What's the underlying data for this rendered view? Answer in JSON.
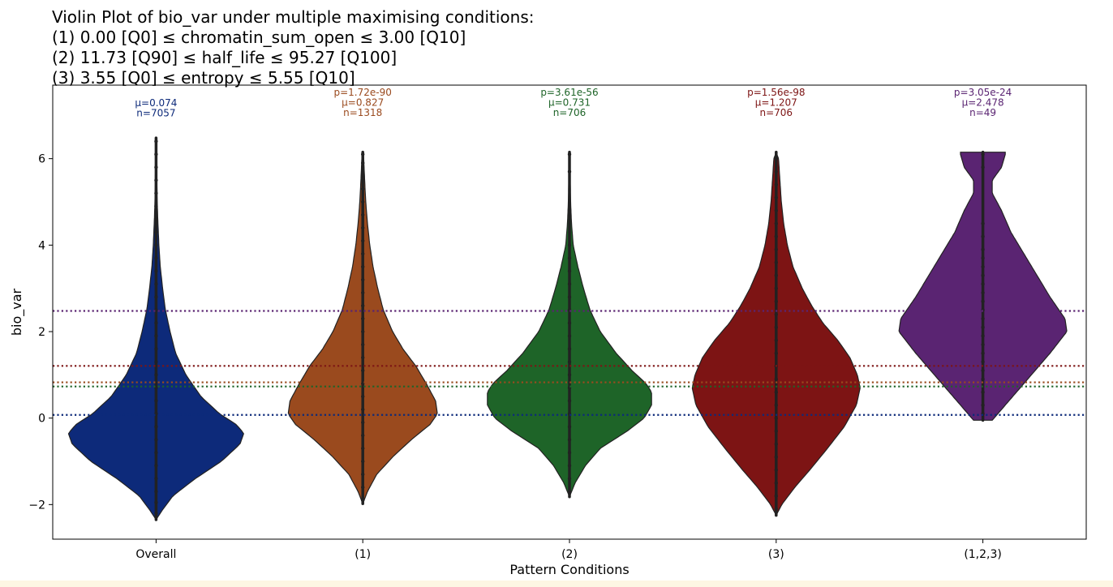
{
  "chart_data": {
    "type": "violin",
    "title_lines": [
      "Violin Plot of bio_var under multiple maximising conditions:",
      "(1) 0.00 [Q0] ≤ chromatin_sum_open ≤ 3.00 [Q10]",
      "(2) 11.73 [Q90] ≤ half_life ≤ 95.27 [Q100]",
      "(3) 3.55 [Q0] ≤ entropy ≤ 5.55 [Q10]"
    ],
    "xlabel": "Pattern Conditions",
    "ylabel": "bio_var",
    "ylim": [
      -2.8,
      7.7
    ],
    "yticks": [
      -2,
      0,
      2,
      4,
      6
    ],
    "ytick_labels": [
      "−2",
      "0",
      "2",
      "4",
      "6"
    ],
    "categories": [
      "Overall",
      "(1)",
      "(2)",
      "(3)",
      "(1,2,3)"
    ],
    "series": [
      {
        "name": "Overall",
        "color": "#0d2a7a",
        "mean": 0.074,
        "p_label": "",
        "mu_label": "μ=0.074",
        "n_label": "n=7057",
        "min": -2.35,
        "max": 6.48,
        "profile": [
          [
            -2.35,
            0.0
          ],
          [
            -2.15,
            0.06
          ],
          [
            -1.8,
            0.18
          ],
          [
            -1.4,
            0.42
          ],
          [
            -1.0,
            0.7
          ],
          [
            -0.6,
            0.9
          ],
          [
            -0.35,
            0.94
          ],
          [
            -0.15,
            0.86
          ],
          [
            0.1,
            0.68
          ],
          [
            0.5,
            0.48
          ],
          [
            1.0,
            0.32
          ],
          [
            1.5,
            0.21
          ],
          [
            2.0,
            0.15
          ],
          [
            2.5,
            0.1
          ],
          [
            3.0,
            0.07
          ],
          [
            3.5,
            0.045
          ],
          [
            4.0,
            0.03
          ],
          [
            4.5,
            0.02
          ],
          [
            5.0,
            0.012
          ],
          [
            5.5,
            0.008
          ],
          [
            6.0,
            0.005
          ],
          [
            6.48,
            0.0
          ]
        ],
        "points": [
          -2.2,
          -1.95,
          -1.7,
          -1.4,
          -1.1,
          -0.8,
          -0.5,
          -0.2,
          0.1,
          0.4,
          0.7,
          1.0,
          1.3,
          1.6,
          1.9,
          2.2,
          2.5,
          2.8,
          3.1,
          3.4,
          3.7,
          4.0,
          4.3,
          4.6,
          4.9,
          5.2,
          5.5,
          5.8,
          6.1,
          6.4
        ]
      },
      {
        "name": "(1)",
        "color": "#9a4a1e",
        "mean": 0.827,
        "p_label": "p=1.72e-90",
        "mu_label": "μ=0.827",
        "n_label": "n=1318",
        "min": -1.98,
        "max": 6.15,
        "profile": [
          [
            -1.98,
            0.0
          ],
          [
            -1.7,
            0.05
          ],
          [
            -1.3,
            0.15
          ],
          [
            -0.9,
            0.32
          ],
          [
            -0.5,
            0.52
          ],
          [
            -0.15,
            0.72
          ],
          [
            0.1,
            0.8
          ],
          [
            0.4,
            0.78
          ],
          [
            0.8,
            0.68
          ],
          [
            1.2,
            0.57
          ],
          [
            1.6,
            0.43
          ],
          [
            2.0,
            0.32
          ],
          [
            2.5,
            0.22
          ],
          [
            3.0,
            0.16
          ],
          [
            3.5,
            0.11
          ],
          [
            4.0,
            0.075
          ],
          [
            4.5,
            0.05
          ],
          [
            5.0,
            0.032
          ],
          [
            5.5,
            0.02
          ],
          [
            6.0,
            0.01
          ],
          [
            6.15,
            0.0
          ]
        ],
        "points": [
          -1.9,
          -1.6,
          -1.3,
          -1.0,
          -0.7,
          -0.4,
          -0.1,
          0.2,
          0.5,
          0.8,
          1.1,
          1.4,
          1.7,
          2.0,
          2.3,
          2.6,
          2.9,
          3.2,
          3.5,
          3.8,
          4.1,
          4.4,
          4.7,
          5.0,
          5.3,
          5.6,
          5.9,
          6.1
        ]
      },
      {
        "name": "(2)",
        "color": "#1e6428",
        "mean": 0.731,
        "p_label": "p=3.61e-56",
        "mu_label": "μ=0.731",
        "n_label": "n=706",
        "min": -1.82,
        "max": 6.15,
        "profile": [
          [
            -1.82,
            0.0
          ],
          [
            -1.5,
            0.06
          ],
          [
            -1.1,
            0.17
          ],
          [
            -0.7,
            0.33
          ],
          [
            -0.3,
            0.62
          ],
          [
            0.0,
            0.8
          ],
          [
            0.3,
            0.88
          ],
          [
            0.6,
            0.88
          ],
          [
            0.8,
            0.82
          ],
          [
            1.1,
            0.67
          ],
          [
            1.5,
            0.5
          ],
          [
            2.0,
            0.33
          ],
          [
            2.5,
            0.22
          ],
          [
            3.0,
            0.15
          ],
          [
            3.5,
            0.09
          ],
          [
            4.0,
            0.04
          ],
          [
            4.5,
            0.022
          ],
          [
            5.0,
            0.012
          ],
          [
            5.5,
            0.007
          ],
          [
            6.0,
            0.004
          ],
          [
            6.15,
            0.0
          ]
        ],
        "points": [
          -1.7,
          -1.4,
          -1.1,
          -0.8,
          -0.5,
          -0.2,
          0.1,
          0.4,
          0.7,
          1.0,
          1.3,
          1.6,
          1.9,
          2.2,
          2.5,
          2.8,
          3.1,
          3.4,
          3.7,
          4.0,
          4.8,
          5.7,
          6.1
        ]
      },
      {
        "name": "(3)",
        "color": "#7d1414",
        "mean": 1.207,
        "p_label": "p=1.56e-98",
        "mu_label": "μ=1.207",
        "n_label": "n=706",
        "min": -2.25,
        "max": 6.15,
        "profile": [
          [
            -2.25,
            0.0
          ],
          [
            -2.0,
            0.06
          ],
          [
            -1.6,
            0.2
          ],
          [
            -1.2,
            0.36
          ],
          [
            -0.7,
            0.55
          ],
          [
            -0.2,
            0.73
          ],
          [
            0.3,
            0.86
          ],
          [
            0.7,
            0.9
          ],
          [
            1.0,
            0.87
          ],
          [
            1.4,
            0.79
          ],
          [
            1.8,
            0.66
          ],
          [
            2.2,
            0.5
          ],
          [
            2.6,
            0.38
          ],
          [
            3.0,
            0.28
          ],
          [
            3.5,
            0.18
          ],
          [
            4.0,
            0.12
          ],
          [
            4.5,
            0.08
          ],
          [
            5.0,
            0.055
          ],
          [
            5.5,
            0.04
          ],
          [
            6.0,
            0.025
          ],
          [
            6.15,
            0.0
          ]
        ],
        "points": [
          -2.1,
          -1.8,
          -1.5,
          -1.2,
          -0.9,
          -0.6,
          -0.3,
          0.0,
          0.3,
          0.6,
          0.9,
          1.2,
          1.5,
          1.8,
          2.1,
          2.4,
          2.7,
          3.0,
          3.3,
          3.6,
          3.9,
          4.2,
          4.5,
          4.8,
          5.1,
          5.4,
          5.7,
          6.0
        ]
      },
      {
        "name": "(1,2,3)",
        "color": "#5a2472",
        "mean": 2.478,
        "p_label": "p=3.05e-24",
        "mu_label": "μ=2.478",
        "n_label": "n=49",
        "min": -0.05,
        "max": 6.15,
        "profile": [
          [
            -0.05,
            0.1
          ],
          [
            0.2,
            0.2
          ],
          [
            0.6,
            0.36
          ],
          [
            1.0,
            0.52
          ],
          [
            1.5,
            0.72
          ],
          [
            2.0,
            0.9
          ],
          [
            2.3,
            0.88
          ],
          [
            2.8,
            0.72
          ],
          [
            3.3,
            0.58
          ],
          [
            3.8,
            0.44
          ],
          [
            4.3,
            0.3
          ],
          [
            4.8,
            0.2
          ],
          [
            5.2,
            0.1
          ],
          [
            5.5,
            0.1
          ],
          [
            5.8,
            0.2
          ],
          [
            6.1,
            0.24
          ],
          [
            6.15,
            0.24
          ]
        ],
        "points": [
          0.1,
          0.3,
          0.6,
          0.9,
          1.1,
          1.3,
          1.5,
          1.7,
          1.9,
          2.1,
          2.3,
          2.5,
          2.7,
          2.9,
          3.1,
          3.3,
          3.5,
          3.7,
          3.9,
          4.2,
          4.5,
          5.8,
          6.1
        ]
      }
    ],
    "mean_line_style": "dotted",
    "grid": false
  }
}
